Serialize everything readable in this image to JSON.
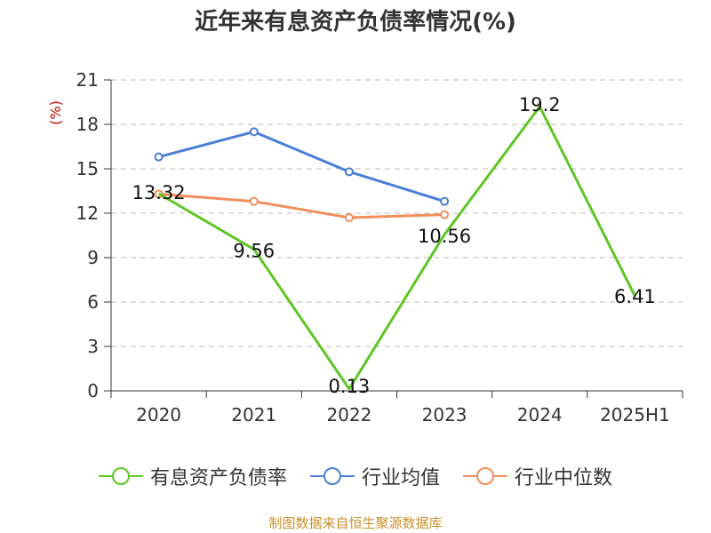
{
  "colors": {
    "text": "#333333",
    "axis": "#333333",
    "grid": "#bbbbbb",
    "unit": "#cc0000",
    "source": "#c8922a"
  },
  "chart_data": {
    "type": "line",
    "title": "近年来有息资产负债率情况(%)",
    "unit_label": "(%)",
    "categories": [
      "2020",
      "2021",
      "2022",
      "2023",
      "2024",
      "2025H1"
    ],
    "ylim": [
      0,
      21
    ],
    "yticks": [
      0,
      3,
      6,
      9,
      12,
      15,
      18,
      21
    ],
    "grid": true,
    "legend_position": "bottom",
    "series": [
      {
        "name": "有息资产负债率",
        "color": "#5ec623",
        "values": [
          13.32,
          9.56,
          0.13,
          10.56,
          19.2,
          6.41
        ],
        "labels": [
          "13.32",
          "9.56",
          "0.13",
          "10.56",
          "19.2",
          "6.41"
        ]
      },
      {
        "name": "行业均值",
        "color": "#4a7fd8",
        "values": [
          15.8,
          17.5,
          14.8,
          12.8,
          null,
          null
        ]
      },
      {
        "name": "行业中位数",
        "color": "#f28e5c",
        "values": [
          13.3,
          12.8,
          11.7,
          11.9,
          null,
          null
        ]
      }
    ]
  },
  "source": "制图数据来自恒生聚源数据库"
}
